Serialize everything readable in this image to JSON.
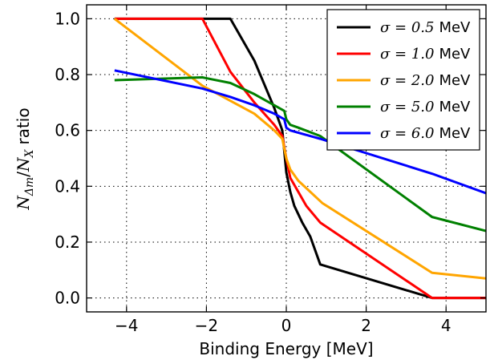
{
  "chart_data": {
    "type": "line",
    "title": "",
    "xlabel": "Binding Energy [MeV]",
    "ylabel": {
      "symbol_main_1": "N",
      "symbol_sub_1": "Δm",
      "slash": "/",
      "symbol_main_2": "N",
      "symbol_sub_2": "X",
      "suffix": "ratio"
    },
    "xlim": [
      -5,
      5
    ],
    "ylim": [
      -0.05,
      1.05
    ],
    "xticks": [
      -4,
      -2,
      0,
      2,
      4
    ],
    "yticks": [
      0.0,
      0.2,
      0.4,
      0.6,
      0.8,
      1.0
    ],
    "xtick_labels": [
      "−4",
      "−2",
      "0",
      "2",
      "4"
    ],
    "ytick_labels": [
      "0.0",
      "0.2",
      "0.4",
      "0.6",
      "0.8",
      "1.0"
    ],
    "grid": true,
    "legend_position": "top-right",
    "series": [
      {
        "name": "σ = 0.5 MeV",
        "legend_prefix": "σ = ",
        "legend_value": "0.5",
        "legend_unit": "MeV",
        "color": "#000000",
        "x": [
          -4.3,
          -1.4,
          -0.8,
          -0.3,
          -0.1,
          0.0,
          0.1,
          0.2,
          0.4,
          0.6,
          0.85,
          3.65,
          5.0
        ],
        "y": [
          1.0,
          1.0,
          0.85,
          0.68,
          0.6,
          0.45,
          0.38,
          0.33,
          0.27,
          0.22,
          0.12,
          0.0,
          0.0
        ]
      },
      {
        "name": "σ = 1.0 MeV",
        "legend_prefix": "σ = ",
        "legend_value": "1.0",
        "legend_unit": "MeV",
        "color": "#ff0000",
        "x": [
          -4.3,
          -2.1,
          -1.4,
          -0.8,
          -0.3,
          -0.1,
          0.0,
          0.1,
          0.3,
          0.5,
          0.85,
          3.65,
          5.0
        ],
        "y": [
          1.0,
          1.0,
          0.81,
          0.7,
          0.62,
          0.58,
          0.5,
          0.43,
          0.38,
          0.33,
          0.27,
          0.0,
          0.0
        ]
      },
      {
        "name": "σ = 2.0 MeV",
        "legend_prefix": "σ = ",
        "legend_value": "2.0",
        "legend_unit": "MeV",
        "color": "#ffa500",
        "x": [
          -4.3,
          -2.1,
          -0.8,
          -0.3,
          -0.1,
          0.0,
          0.1,
          0.3,
          0.6,
          0.9,
          3.65,
          5.0
        ],
        "y": [
          1.0,
          0.76,
          0.66,
          0.6,
          0.57,
          0.5,
          0.46,
          0.42,
          0.38,
          0.34,
          0.09,
          0.07
        ]
      },
      {
        "name": "σ = 5.0 MeV",
        "legend_prefix": "σ = ",
        "legend_value": "5.0",
        "legend_unit": "MeV",
        "color": "#008000",
        "x": [
          -4.3,
          -2.1,
          -1.4,
          -0.8,
          -0.3,
          -0.05,
          0.0,
          0.1,
          0.3,
          0.85,
          3.65,
          5.0
        ],
        "y": [
          0.78,
          0.79,
          0.77,
          0.73,
          0.69,
          0.67,
          0.64,
          0.62,
          0.61,
          0.58,
          0.29,
          0.24
        ]
      },
      {
        "name": "σ = 6.0 MeV",
        "legend_prefix": "σ = ",
        "legend_value": "6.0",
        "legend_unit": "MeV",
        "color": "#0000ff",
        "x": [
          -4.3,
          -2.1,
          -1.4,
          -0.8,
          -0.3,
          -0.05,
          0.0,
          0.1,
          0.85,
          3.65,
          5.0
        ],
        "y": [
          0.815,
          0.75,
          0.72,
          0.69,
          0.66,
          0.64,
          0.61,
          0.6,
          0.57,
          0.445,
          0.375
        ]
      }
    ]
  }
}
